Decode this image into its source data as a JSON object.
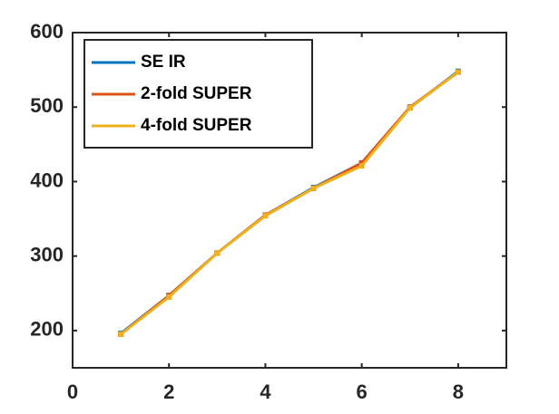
{
  "chart_data": {
    "type": "line",
    "x": [
      1,
      2,
      3,
      4,
      5,
      6,
      7,
      8
    ],
    "series": [
      {
        "name": "SE IR",
        "color": "#0072BD",
        "values": [
          196,
          247,
          304,
          355,
          392,
          425,
          499,
          548
        ]
      },
      {
        "name": "2-fold SUPER",
        "color": "#D95319",
        "values": [
          195,
          247,
          304,
          355,
          391,
          425,
          500,
          547
        ]
      },
      {
        "name": "4-fold SUPER",
        "color": "#EDB120",
        "values": [
          195,
          245,
          304,
          354,
          391,
          421,
          499,
          547
        ]
      }
    ],
    "xlim": [
      0,
      9
    ],
    "xticks": [
      0,
      2,
      4,
      6,
      8
    ],
    "ylim": [
      150,
      600
    ],
    "yticks": [
      200,
      300,
      400,
      500,
      600
    ],
    "grid": false,
    "legend": "northwest"
  }
}
